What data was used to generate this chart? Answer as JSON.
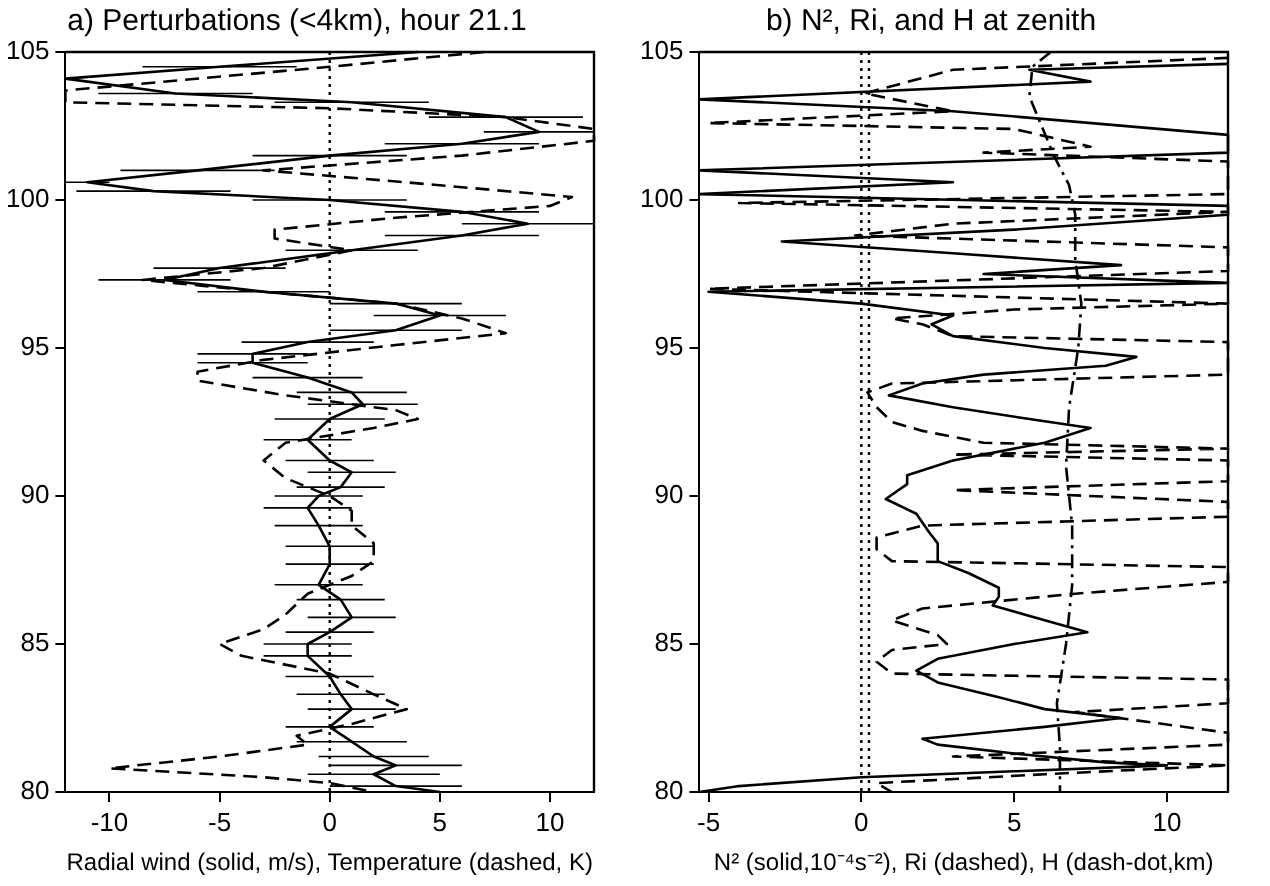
{
  "chart_data": [
    {
      "type": "line",
      "title": "a) Perturbations (<4km), hour 21.1",
      "xlabel": "Radial wind (solid, m/s), Temperature (dashed, K)",
      "xlim": [
        -12,
        12
      ],
      "xticks": [
        -10,
        -5,
        0,
        5,
        10
      ],
      "ylim": [
        80,
        105
      ],
      "yticks": [
        80,
        85,
        90,
        95,
        100,
        105
      ],
      "grid": false,
      "legend": false,
      "marker": "none",
      "ref_lines": [
        {
          "axis": "x",
          "value": 0,
          "line_style": "dotted",
          "color": "#000000"
        }
      ],
      "series": [
        {
          "color": "#000000",
          "line_style": "solid",
          "x": [
            4,
            -5,
            -12,
            -7,
            1,
            8,
            9.5,
            6,
            0,
            -6,
            -11,
            -8,
            0,
            6,
            9,
            6,
            1,
            -5,
            -7.5,
            -3,
            3,
            5,
            3,
            -1,
            -3.5,
            -3.5,
            -1,
            1,
            1.5,
            0,
            -1,
            0,
            1,
            0.5,
            -0.5,
            -1,
            -0.5,
            0,
            0,
            -0.5,
            0.5,
            1,
            0,
            -1,
            -1,
            0,
            0.5,
            1,
            0,
            1,
            2,
            3,
            2,
            3,
            5
          ],
          "values": [
            105,
            104.5,
            104.1,
            103.6,
            103.3,
            102.8,
            102.3,
            101.9,
            101.5,
            101,
            100.6,
            100.3,
            100,
            99.6,
            99.2,
            98.8,
            98.3,
            97.7,
            97.3,
            96.9,
            96.5,
            96.1,
            95.6,
            95.2,
            94.8,
            94.5,
            94,
            93.5,
            93.1,
            92.6,
            91.9,
            91.2,
            90.8,
            90.3,
            90,
            89.6,
            89,
            88.3,
            87.7,
            87,
            86.5,
            85.9,
            85.4,
            85,
            84.6,
            83.9,
            83.3,
            82.8,
            82.2,
            81.7,
            81.2,
            80.9,
            80.6,
            80.2,
            80
          ],
          "xerrors": [
            3.5,
            3.5,
            null,
            3.5,
            3.5,
            3.5,
            2.5,
            3.5,
            3.5,
            3.5,
            1,
            3.5,
            3.5,
            3.5,
            3,
            3.5,
            3,
            3,
            3,
            3,
            3,
            3,
            3,
            3,
            2.5,
            2.5,
            2.5,
            2.5,
            2.5,
            2.5,
            2,
            2,
            2,
            2,
            2,
            2,
            2,
            2,
            2,
            2,
            2,
            2,
            2,
            2,
            2,
            2,
            2,
            2,
            2,
            2.5,
            2.5,
            3,
            3,
            3,
            3
          ]
        },
        {
          "color": "#000000",
          "line_style": "dashed",
          "x": [
            7,
            0,
            -12,
            -12,
            0,
            8,
            12,
            12,
            6,
            -3,
            5,
            11,
            10,
            3,
            -2.5,
            -2.5,
            1,
            -3,
            -8.5,
            -3,
            3,
            6,
            8,
            3,
            -3,
            -6,
            -6,
            -2,
            3,
            4,
            2,
            -2,
            -3,
            -2,
            0,
            1,
            1,
            2,
            2,
            1,
            -1,
            -2,
            -3,
            -5,
            -4,
            0,
            2,
            3.5,
            1,
            -1.5,
            -1,
            -5,
            -10,
            -3,
            0,
            2
          ],
          "values": [
            105,
            104.5,
            103.7,
            103.3,
            103.1,
            102.8,
            102.4,
            102,
            101.5,
            101,
            100.5,
            100.1,
            99.8,
            99.4,
            99,
            98.7,
            98.3,
            97.7,
            97.3,
            96.9,
            96.5,
            96,
            95.5,
            95.1,
            94.6,
            94.2,
            93.9,
            93.4,
            92.9,
            92.6,
            92.3,
            91.8,
            91.2,
            90.6,
            90,
            89.5,
            89,
            88.4,
            87.8,
            87.3,
            86.7,
            86,
            85.5,
            85,
            84.6,
            84,
            83.3,
            82.8,
            82.3,
            81.9,
            81.6,
            81.2,
            80.8,
            80.5,
            80.3,
            80
          ]
        }
      ]
    },
    {
      "type": "line",
      "title": "b) N², Ri, and H at zenith",
      "xlabel": "N² (solid,10⁻⁴s⁻²), Ri (dashed), H (dash-dot,km)",
      "xlim": [
        -5.3,
        12
      ],
      "xticks": [
        -5,
        0,
        5,
        10
      ],
      "ylim": [
        80,
        105
      ],
      "yticks": [
        80,
        85,
        90,
        95,
        100,
        105
      ],
      "grid": false,
      "legend": false,
      "marker": "none",
      "ref_lines": [
        {
          "axis": "x",
          "value": 0,
          "line_style": "dotted",
          "color": "#000000"
        },
        {
          "axis": "x",
          "value": 0.25,
          "line_style": "dotted",
          "color": "#000000"
        }
      ],
      "series": [
        {
          "color": "#000000",
          "line_style": "solid",
          "x": [
            12,
            5.5,
            7.5,
            -5.3,
            3,
            12,
            12,
            -5.3,
            3,
            -5.3,
            12,
            12,
            5,
            -2.6,
            3,
            8.5,
            4,
            12,
            -5,
            0,
            3,
            2.3,
            3,
            6,
            9,
            8,
            4,
            2,
            0.9,
            3,
            5.5,
            7.5,
            6,
            3,
            1.5,
            1.5,
            0.8,
            1.8,
            2.2,
            2.5,
            2.5,
            3.5,
            4.5,
            4.5,
            4.3,
            6,
            7.4,
            5,
            2.5,
            1.8,
            2.5,
            4.5,
            6,
            8.5,
            6,
            2,
            2.5,
            5,
            8,
            10,
            5,
            0,
            -4,
            -5.3
          ],
          "values": [
            104.6,
            104.4,
            104,
            103.4,
            103,
            102.2,
            101.6,
            101,
            100.6,
            100.2,
            99.8,
            99.5,
            99,
            98.6,
            98.2,
            97.8,
            97.5,
            97.2,
            96.9,
            96.5,
            96.1,
            95.8,
            95.4,
            95,
            94.7,
            94.4,
            94.1,
            93.8,
            93.4,
            93,
            92.6,
            92.3,
            91.8,
            91.2,
            90.7,
            90.4,
            89.9,
            89.4,
            88.8,
            88.4,
            87.8,
            87.4,
            86.9,
            86.6,
            86.3,
            85.8,
            85.4,
            85,
            84.5,
            84.1,
            83.7,
            83.2,
            82.8,
            82.5,
            82.2,
            81.8,
            81.6,
            81.3,
            81,
            80.9,
            80.7,
            80.5,
            80.2,
            80
          ]
        },
        {
          "color": "#000000",
          "line_style": "dashed",
          "x": [
            12,
            3,
            0.1,
            3,
            -5,
            5,
            7.5,
            4,
            12,
            12,
            -4,
            12,
            3,
            -0.2,
            12,
            12,
            -5,
            12,
            5,
            1,
            2,
            3,
            12,
            12,
            1,
            0.2,
            0.5,
            1,
            2,
            4,
            12,
            3,
            12,
            12,
            3,
            12,
            12,
            2,
            0.5,
            0.5,
            1,
            12,
            12,
            7,
            2,
            1,
            2.5,
            2.8,
            1,
            0.5,
            1,
            12,
            12,
            7,
            12,
            12,
            3,
            12,
            6,
            0.5,
            1
          ],
          "values": [
            104.8,
            104.4,
            103.6,
            103,
            102.6,
            102.4,
            101.8,
            101.6,
            101.3,
            100.2,
            99.9,
            99.6,
            99.2,
            98.8,
            98.4,
            97.6,
            97,
            96.5,
            96.3,
            96,
            95.8,
            95.4,
            95.2,
            94.1,
            93.8,
            93.5,
            93,
            92.5,
            92.2,
            91.8,
            91.6,
            91.4,
            91.2,
            90.5,
            90.2,
            89.8,
            89.3,
            89,
            88.6,
            88.2,
            87.8,
            87.6,
            87.1,
            86.7,
            86.2,
            85.8,
            85.3,
            85,
            84.8,
            84.4,
            84,
            83.8,
            83,
            82.7,
            82,
            81.6,
            81.2,
            80.9,
            80.6,
            80.3,
            80
          ]
        },
        {
          "color": "#000000",
          "line_style": "dashdot",
          "x": [
            6.2,
            5.6,
            5.5,
            5.9,
            6.3,
            6.8,
            7,
            7,
            7.2,
            7.1,
            6.8,
            6.7,
            6.9,
            6.9,
            6.7,
            6.4,
            6.5,
            6.5
          ],
          "values": [
            105,
            104.5,
            103.5,
            102.5,
            101.5,
            100.5,
            99.5,
            98,
            96.5,
            95,
            93,
            91,
            89,
            87,
            85,
            83,
            81.5,
            80
          ]
        }
      ]
    }
  ]
}
